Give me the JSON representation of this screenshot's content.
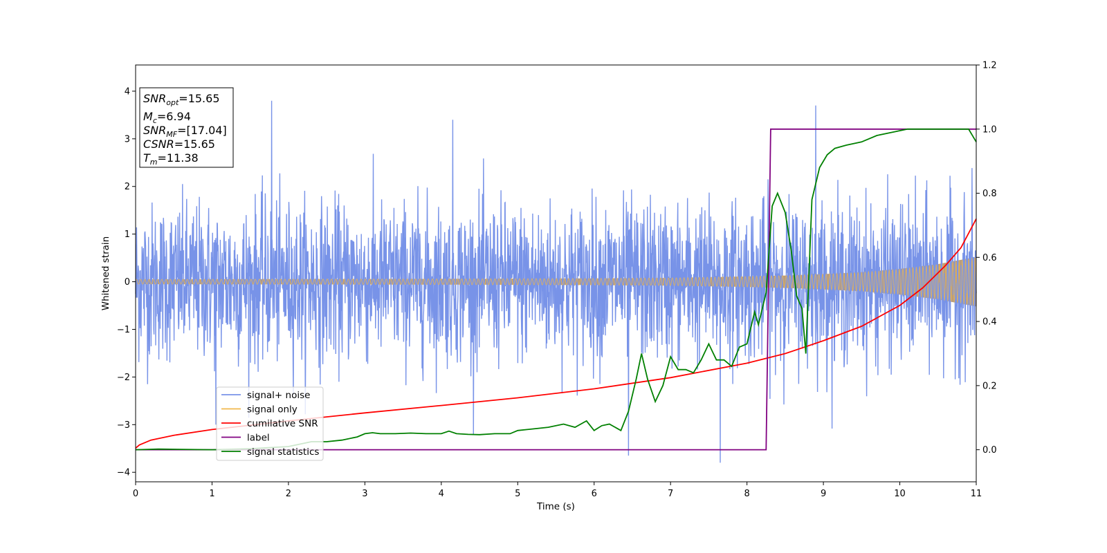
{
  "chart_data": {
    "type": "line",
    "xlabel": "Time (s)",
    "ylabel": "Whitened strain",
    "xlim": [
      0,
      11
    ],
    "ylim_left": [
      -4.2,
      4.55
    ],
    "ylim_right": [
      -0.1,
      1.2
    ],
    "x_ticks": [
      "0",
      "1",
      "2",
      "3",
      "4",
      "5",
      "6",
      "7",
      "8",
      "9",
      "10",
      "11"
    ],
    "y_ticks_left": [
      "−4",
      "−3",
      "−2",
      "−1",
      "0",
      "1",
      "2",
      "3",
      "4"
    ],
    "y_ticks_right": [
      "0.0",
      "0.2",
      "0.4",
      "0.6",
      "0.8",
      "1.0",
      "1.2"
    ],
    "info_box": {
      "snr_opt": {
        "name": "SNR",
        "sub": "opt",
        "value": "=15.65"
      },
      "mc": {
        "name": "M",
        "sub": "c",
        "value": "=6.94"
      },
      "snr_mf": {
        "name": "SNR",
        "sub": "MF",
        "value": "=[17.04]"
      },
      "csnr": {
        "name": "CSNR",
        "value": "=15.65"
      },
      "tm": {
        "name": "T",
        "sub": "m",
        "value": "=11.38"
      }
    },
    "legend": {
      "placement": "lower-left",
      "entries": [
        "signal+ noise",
        "signal only",
        "cumilative SNR",
        "label",
        "signal statistics"
      ]
    },
    "colors": {
      "signal_noise": "#7893e8",
      "signal_only": "#f0b74a",
      "signal_fill": "#b89c7e",
      "cumulative_snr": "#ff0000",
      "label": "#800080",
      "signal_statistics": "#008000"
    },
    "series": [
      {
        "name": "signal+ noise",
        "axis": "left",
        "style": "noise band",
        "envelope_typical": [
          -1.7,
          1.8
        ],
        "notable_peaks": [
          {
            "x": 1.78,
            "y": 3.8
          },
          {
            "x": 8.9,
            "y": 3.7
          },
          {
            "x": 4.15,
            "y": 3.4
          },
          {
            "x": 6.45,
            "y": -3.65
          },
          {
            "x": 7.65,
            "y": -3.8
          },
          {
            "x": 1.05,
            "y": -3.0
          }
        ]
      },
      {
        "name": "signal only",
        "axis": "left",
        "style": "chirp",
        "amplitude": [
          [
            0,
            0.05
          ],
          [
            2,
            0.055
          ],
          [
            4,
            0.06
          ],
          [
            6,
            0.07
          ],
          [
            7,
            0.08
          ],
          [
            8,
            0.11
          ],
          [
            8.5,
            0.13
          ],
          [
            9,
            0.16
          ],
          [
            9.5,
            0.2
          ],
          [
            10,
            0.27
          ],
          [
            10.5,
            0.37
          ],
          [
            11,
            0.52
          ]
        ]
      },
      {
        "name": "cumilative SNR",
        "axis": "right",
        "x": [
          0,
          0.05,
          0.2,
          0.5,
          1,
          2,
          3,
          4,
          5,
          6,
          7,
          8,
          8.5,
          9,
          9.5,
          10,
          10.3,
          10.6,
          10.8,
          11
        ],
        "y": [
          0.005,
          0.015,
          0.03,
          0.045,
          0.063,
          0.09,
          0.115,
          0.138,
          0.162,
          0.19,
          0.225,
          0.27,
          0.3,
          0.34,
          0.385,
          0.45,
          0.505,
          0.575,
          0.63,
          0.72
        ]
      },
      {
        "name": "label",
        "axis": "right",
        "x": [
          0,
          8.25,
          8.31,
          11
        ],
        "y": [
          0,
          0,
          1,
          1
        ]
      },
      {
        "name": "signal statistics",
        "axis": "right",
        "x": [
          0,
          0.3,
          1,
          1.5,
          2,
          2.3,
          2.5,
          2.7,
          2.9,
          3.0,
          3.1,
          3.2,
          3.4,
          3.6,
          3.8,
          4.0,
          4.1,
          4.2,
          4.35,
          4.5,
          4.7,
          4.9,
          5.0,
          5.2,
          5.4,
          5.6,
          5.75,
          5.9,
          6.0,
          6.1,
          6.2,
          6.35,
          6.45,
          6.55,
          6.62,
          6.7,
          6.8,
          6.9,
          7.0,
          7.1,
          7.2,
          7.3,
          7.4,
          7.5,
          7.6,
          7.7,
          7.8,
          7.9,
          8.0,
          8.1,
          8.15,
          8.25,
          8.33,
          8.4,
          8.5,
          8.58,
          8.65,
          8.72,
          8.77,
          8.85,
          8.95,
          9.05,
          9.15,
          9.3,
          9.5,
          9.7,
          9.9,
          10.1,
          10.4,
          10.7,
          10.9,
          11.0
        ],
        "y": [
          0.0,
          0.002,
          0.0,
          0.003,
          0.01,
          0.025,
          0.025,
          0.03,
          0.04,
          0.05,
          0.053,
          0.05,
          0.05,
          0.052,
          0.05,
          0.05,
          0.058,
          0.05,
          0.048,
          0.047,
          0.05,
          0.05,
          0.06,
          0.065,
          0.07,
          0.08,
          0.07,
          0.09,
          0.06,
          0.075,
          0.08,
          0.06,
          0.12,
          0.22,
          0.3,
          0.22,
          0.15,
          0.2,
          0.29,
          0.25,
          0.25,
          0.24,
          0.28,
          0.33,
          0.28,
          0.28,
          0.26,
          0.32,
          0.33,
          0.43,
          0.39,
          0.49,
          0.76,
          0.8,
          0.74,
          0.62,
          0.48,
          0.44,
          0.3,
          0.78,
          0.88,
          0.92,
          0.94,
          0.95,
          0.96,
          0.98,
          0.99,
          1.0,
          1.0,
          1.0,
          1.0,
          0.96
        ]
      }
    ]
  }
}
